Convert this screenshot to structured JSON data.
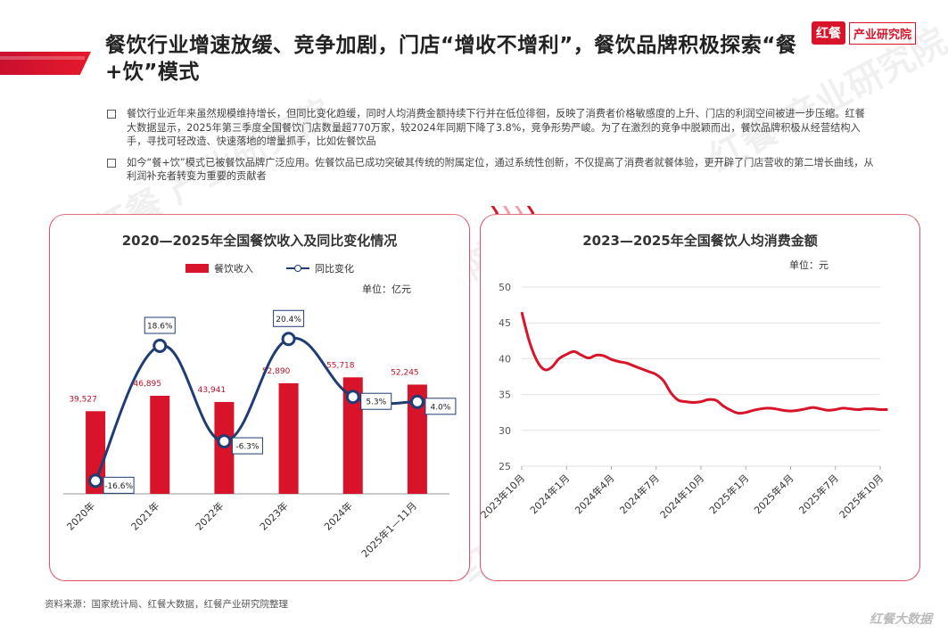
{
  "header": {
    "title": "餐饮行业增速放缓、竞争加剧，门店“增收不增利”，餐饮品牌积极探索“餐+饮”模式",
    "brand_logo": "红餐",
    "brand_name": "产业研究院"
  },
  "bullets": [
    "餐饮行业近年来虽然规模维持增长，但同比变化趋缓，同时人均消费金额持续下行并在低位徘徊，反映了消费者价格敏感度的上升、门店的利润空间被进一步压缩。红餐大数据显示，2025年第三季度全国餐饮门店数量超770万家，较2024年同期下降了3.8%，竞争形势严峻。为了在激烈的竞争中脱颖而出，餐饮品牌积极从经营结构入手，寻找可轻改造、快速落地的增量抓手，比如佐餐饮品",
    "如今“餐+饮”模式已被餐饮品牌广泛应用。佐餐饮品已成功突破其传统的附属定位，通过系统性创新，不仅提高了消费者就餐体验，更开辟了门店营收的第二增长曲线，从利润补充者转变为重要的贡献者"
  ],
  "chart_data": [
    {
      "type": "bar",
      "title": "2020—2025年全国餐饮收入及同比变化情况",
      "unit": "单位：亿元",
      "categories": [
        "2020年",
        "2021年",
        "2022年",
        "2023年",
        "2024年",
        "2025年1—11月"
      ],
      "series": [
        {
          "name": "餐饮收入",
          "type": "bar",
          "values": [
            39527,
            46895,
            43941,
            52890,
            55718,
            52245
          ],
          "labels": [
            "39,527",
            "46,895",
            "43,941",
            "52,890",
            "55,718",
            "52,245"
          ],
          "color": "#d7142a"
        },
        {
          "name": "同比变化",
          "type": "line",
          "values": [
            -16.6,
            18.6,
            -6.3,
            20.4,
            5.3,
            4.0
          ],
          "labels": [
            "-16.6%",
            "18.6%",
            "-6.3%",
            "20.4%",
            "5.3%",
            "4.0%"
          ],
          "color": "#1f3d73"
        }
      ],
      "bar_ylim": [
        0,
        110000
      ],
      "line_ylim": [
        -20,
        40
      ]
    },
    {
      "type": "line",
      "title": "2023—2025年全国餐饮人均消费金额",
      "unit": "单位：元",
      "x_ticks": [
        "2023年10月",
        "2024年1月",
        "2024年4月",
        "2024年7月",
        "2024年10月",
        "2025年1月",
        "2025年4月",
        "2025年7月",
        "2025年10月"
      ],
      "ylim": [
        25,
        50
      ],
      "y_ticks": [
        25,
        30,
        35,
        40,
        45,
        50
      ],
      "grid": true,
      "color": "#d7142a",
      "x": [
        0,
        0.5,
        1,
        1.5,
        2,
        2.5,
        3,
        3.5,
        4,
        4.5,
        5,
        5.5,
        6,
        6.5,
        7,
        7.5,
        8,
        8.5,
        9,
        9.5,
        10,
        10.5,
        11,
        11.5,
        12,
        12.5,
        13,
        13.5,
        14,
        14.5,
        15,
        15.5,
        16,
        16.5,
        17,
        17.5,
        18,
        18.5,
        19,
        19.5,
        20,
        20.5,
        21,
        21.5,
        22,
        22.5,
        23,
        23.5,
        24,
        24.5
      ],
      "y": [
        46.5,
        42.5,
        39.8,
        38.5,
        38.8,
        40.0,
        40.6,
        41.0,
        40.5,
        40.1,
        40.5,
        40.4,
        39.9,
        39.6,
        39.4,
        39.0,
        38.6,
        38.2,
        37.8,
        36.9,
        35.2,
        34.2,
        34.0,
        33.9,
        34.0,
        34.3,
        34.2,
        33.4,
        32.8,
        32.4,
        32.5,
        32.8,
        33.0,
        33.1,
        33.0,
        32.8,
        32.7,
        32.8,
        33.0,
        33.2,
        33.0,
        32.8,
        32.9,
        33.1,
        33.0,
        32.9,
        33.0,
        33.0,
        32.9,
        32.9
      ]
    }
  ],
  "source": "资料来源：国家统计局、红餐大数据，红餐产业研究院整理",
  "footer": "红餐大数据",
  "watermark": "红餐 产业研究院"
}
